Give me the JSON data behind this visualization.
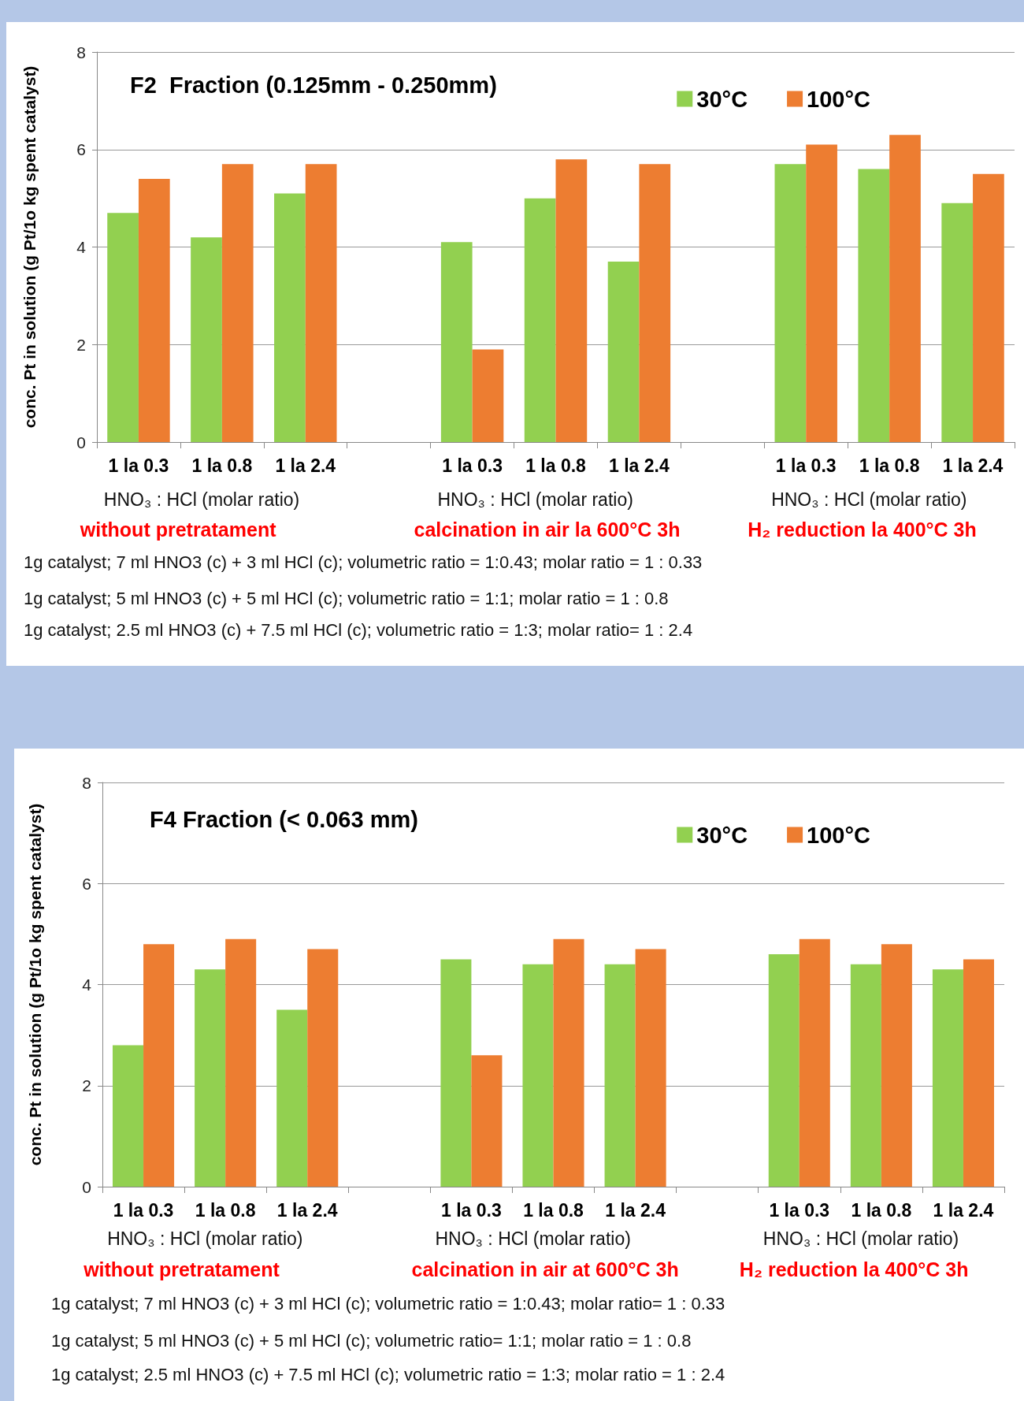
{
  "chart_data": [
    {
      "type": "bar",
      "title": "F2  Fraction (0.125mm - 0.250mm)",
      "ylabel": "conc. Pt in solution (g Pt/1o kg spent catalyst)",
      "categories": [
        "1 la 0.3",
        "1 la 0.8",
        "1 la 2.4",
        null,
        "1 la 0.3",
        "1 la 0.8",
        "1 la 2.4",
        null,
        "1 la 0.3",
        "1 la 0.8",
        "1 la 2.4"
      ],
      "series": [
        {
          "name": "30°C",
          "color": "#92d050",
          "values": [
            4.7,
            4.2,
            5.1,
            null,
            4.1,
            5.0,
            3.7,
            null,
            5.7,
            5.6,
            4.9
          ]
        },
        {
          "name": "100°C",
          "color": "#ed7d31",
          "values": [
            5.4,
            5.7,
            5.7,
            null,
            1.9,
            5.8,
            5.7,
            null,
            6.1,
            6.3,
            5.5
          ]
        }
      ],
      "ylim": [
        0,
        8
      ],
      "yticks": [
        0,
        2,
        4,
        6,
        8
      ],
      "grid": "y",
      "legend": "top right",
      "annotations": [
        "HNO₃ : HCl (molar ratio)",
        "HNO₃ : HCl (molar ratio)",
        "HNO₃ : HCl (molar ratio)",
        "without pretratament",
        "calcination in air la 600°C 3h",
        "H₂ reduction la 400°C 3h",
        "1g catalyst; 7 ml HNO3 (c) + 3 ml HCl (c); volumetric ratio = 1:0.43; molar ratio = 1 : 0.33",
        "1g catalyst; 5 ml HNO3 (c) + 5 ml HCl (c); volumetric ratio = 1:1; molar ratio = 1 : 0.8",
        "1g catalyst; 2.5 ml HNO3 (c) + 7.5 ml HCl (c); volumetric ratio = 1:3; molar ratio= 1 : 2.4"
      ]
    },
    {
      "type": "bar",
      "title": "F4 Fraction (< 0.063 mm)",
      "ylabel": "conc. Pt in solution (g Pt/1o kg spent catalyst)",
      "categories": [
        "1 la 0.3",
        "1 la 0.8",
        "1 la 2.4",
        null,
        "1 la 0.3",
        "1 la 0.8",
        "1 la 2.4",
        null,
        "1 la 0.3",
        "1 la 0.8",
        "1 la 2.4"
      ],
      "series": [
        {
          "name": "30°C",
          "color": "#92d050",
          "values": [
            2.8,
            4.3,
            3.5,
            null,
            4.5,
            4.4,
            4.4,
            null,
            4.6,
            4.4,
            4.3
          ]
        },
        {
          "name": "100°C",
          "color": "#ed7d31",
          "values": [
            4.8,
            4.9,
            4.7,
            null,
            2.6,
            4.9,
            4.7,
            null,
            4.9,
            4.8,
            4.5
          ]
        }
      ],
      "ylim": [
        0,
        8
      ],
      "yticks": [
        0,
        2,
        4,
        6,
        8
      ],
      "grid": "y",
      "legend": "top right",
      "annotations": [
        "HNO₃ : HCl (molar ratio)",
        "HNO₃ : HCl (molar ratio)",
        "HNO₃ : HCl (molar ratio)",
        "without pretratament",
        "calcination in air at 600°C 3h",
        "H₂ reduction la 400°C 3h",
        "1g catalyst; 7 ml HNO3 (c) + 3 ml HCl (c); volumetric ratio = 1:0.43; molar ratio= 1 : 0.33",
        "1g catalyst; 5 ml HNO3 (c) + 5 ml HCl (c); volumetric ratio= 1:1; molar ratio = 1 : 0.8",
        "1g catalyst; 2.5 ml HNO3 (c) + 7.5 ml HCl (c); volumetric ratio = 1:3; molar ratio = 1 : 2.4"
      ]
    }
  ]
}
